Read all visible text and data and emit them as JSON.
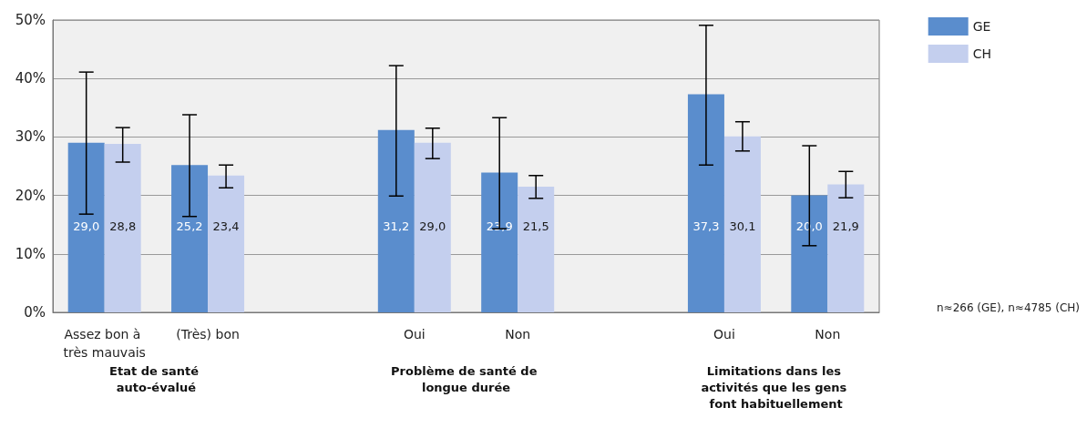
{
  "chart_data": {
    "type": "bar",
    "categories": [
      "Assez bon à très mauvais",
      "(Très) bon",
      null,
      "Oui",
      "Non",
      null,
      "Oui",
      "Non"
    ],
    "series": [
      {
        "name": "GE",
        "color": "#5a8dcd",
        "values": [
          29.0,
          25.2,
          null,
          31.2,
          23.9,
          null,
          37.3,
          20.0
        ],
        "value_labels": [
          "29,0",
          "25,2",
          null,
          "31,2",
          "23,9",
          null,
          "37,3",
          "20,0"
        ],
        "errors": [
          [
            16.8,
            41.1
          ],
          [
            16.4,
            33.8
          ],
          null,
          [
            19.9,
            42.2
          ],
          [
            14.3,
            33.3
          ],
          null,
          [
            25.2,
            49.1
          ],
          [
            11.4,
            28.5
          ]
        ]
      },
      {
        "name": "CH",
        "color": "#c4cfee",
        "values": [
          28.8,
          23.4,
          null,
          29.0,
          21.5,
          null,
          30.1,
          21.9
        ],
        "value_labels": [
          "28,8",
          "23,4",
          null,
          "29,0",
          "21,5",
          null,
          "30,1",
          "21,9"
        ],
        "errors": [
          [
            25.7,
            31.6
          ],
          [
            21.3,
            25.2
          ],
          null,
          [
            26.3,
            31.5
          ],
          [
            19.5,
            23.4
          ],
          null,
          [
            27.6,
            32.6
          ],
          [
            19.6,
            24.1
          ]
        ]
      }
    ],
    "ylim": [
      0,
      50
    ],
    "yticks": [
      {
        "value": 0,
        "label": "0%"
      },
      {
        "value": 10,
        "label": "10%"
      },
      {
        "value": 20,
        "label": "20%"
      },
      {
        "value": 30,
        "label": "30%"
      },
      {
        "value": 40,
        "label": "40%"
      },
      {
        "value": 50,
        "label": "50%"
      }
    ],
    "grid": "y",
    "legend": "top right",
    "annotations": [
      "Etat de santé auto-évalué",
      "Problème de santé de longue durée",
      "Limitations dans les activités que les gens font habituellement",
      "n≈266 (GE), n≈4785 (CH)"
    ]
  }
}
